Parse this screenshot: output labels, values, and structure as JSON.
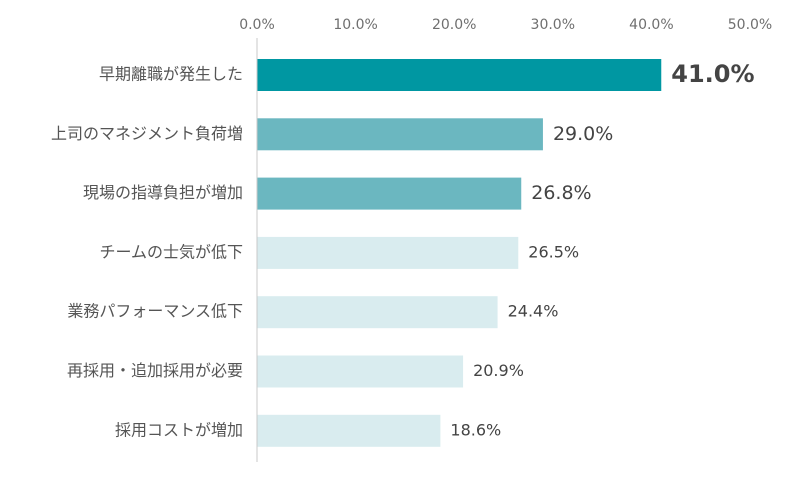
{
  "chart_data": {
    "type": "bar",
    "orientation": "horizontal",
    "title": "",
    "xlabel": "",
    "ylabel": "",
    "xlim": [
      0,
      50
    ],
    "x_ticks": [
      "0.0%",
      "10.0%",
      "20.0%",
      "30.0%",
      "40.0%",
      "50.0%"
    ],
    "x_tick_values": [
      0,
      10,
      20,
      30,
      40,
      50
    ],
    "grid": false,
    "categories": [
      "早期離職が発生した",
      "上司のマネジメント負荷増",
      "現場の指導負担が増加",
      "チームの士気が低下",
      "業務パフォーマンス低下",
      "再採用・追加採用が必要",
      "採用コストが増加"
    ],
    "values": [
      41.0,
      29.0,
      26.8,
      26.5,
      24.4,
      20.9,
      18.6
    ],
    "value_labels": [
      "41.0%",
      "29.0%",
      "26.8%",
      "26.5%",
      "24.4%",
      "20.9%",
      "18.6%"
    ],
    "bar_colors": [
      "#0097a2",
      "#6bb7c0",
      "#6bb7c0",
      "#d9ecef",
      "#d9ecef",
      "#d9ecef",
      "#d9ecef"
    ],
    "label_emphasis": [
      "strong",
      "medium",
      "medium",
      "normal",
      "normal",
      "normal",
      "normal"
    ]
  }
}
